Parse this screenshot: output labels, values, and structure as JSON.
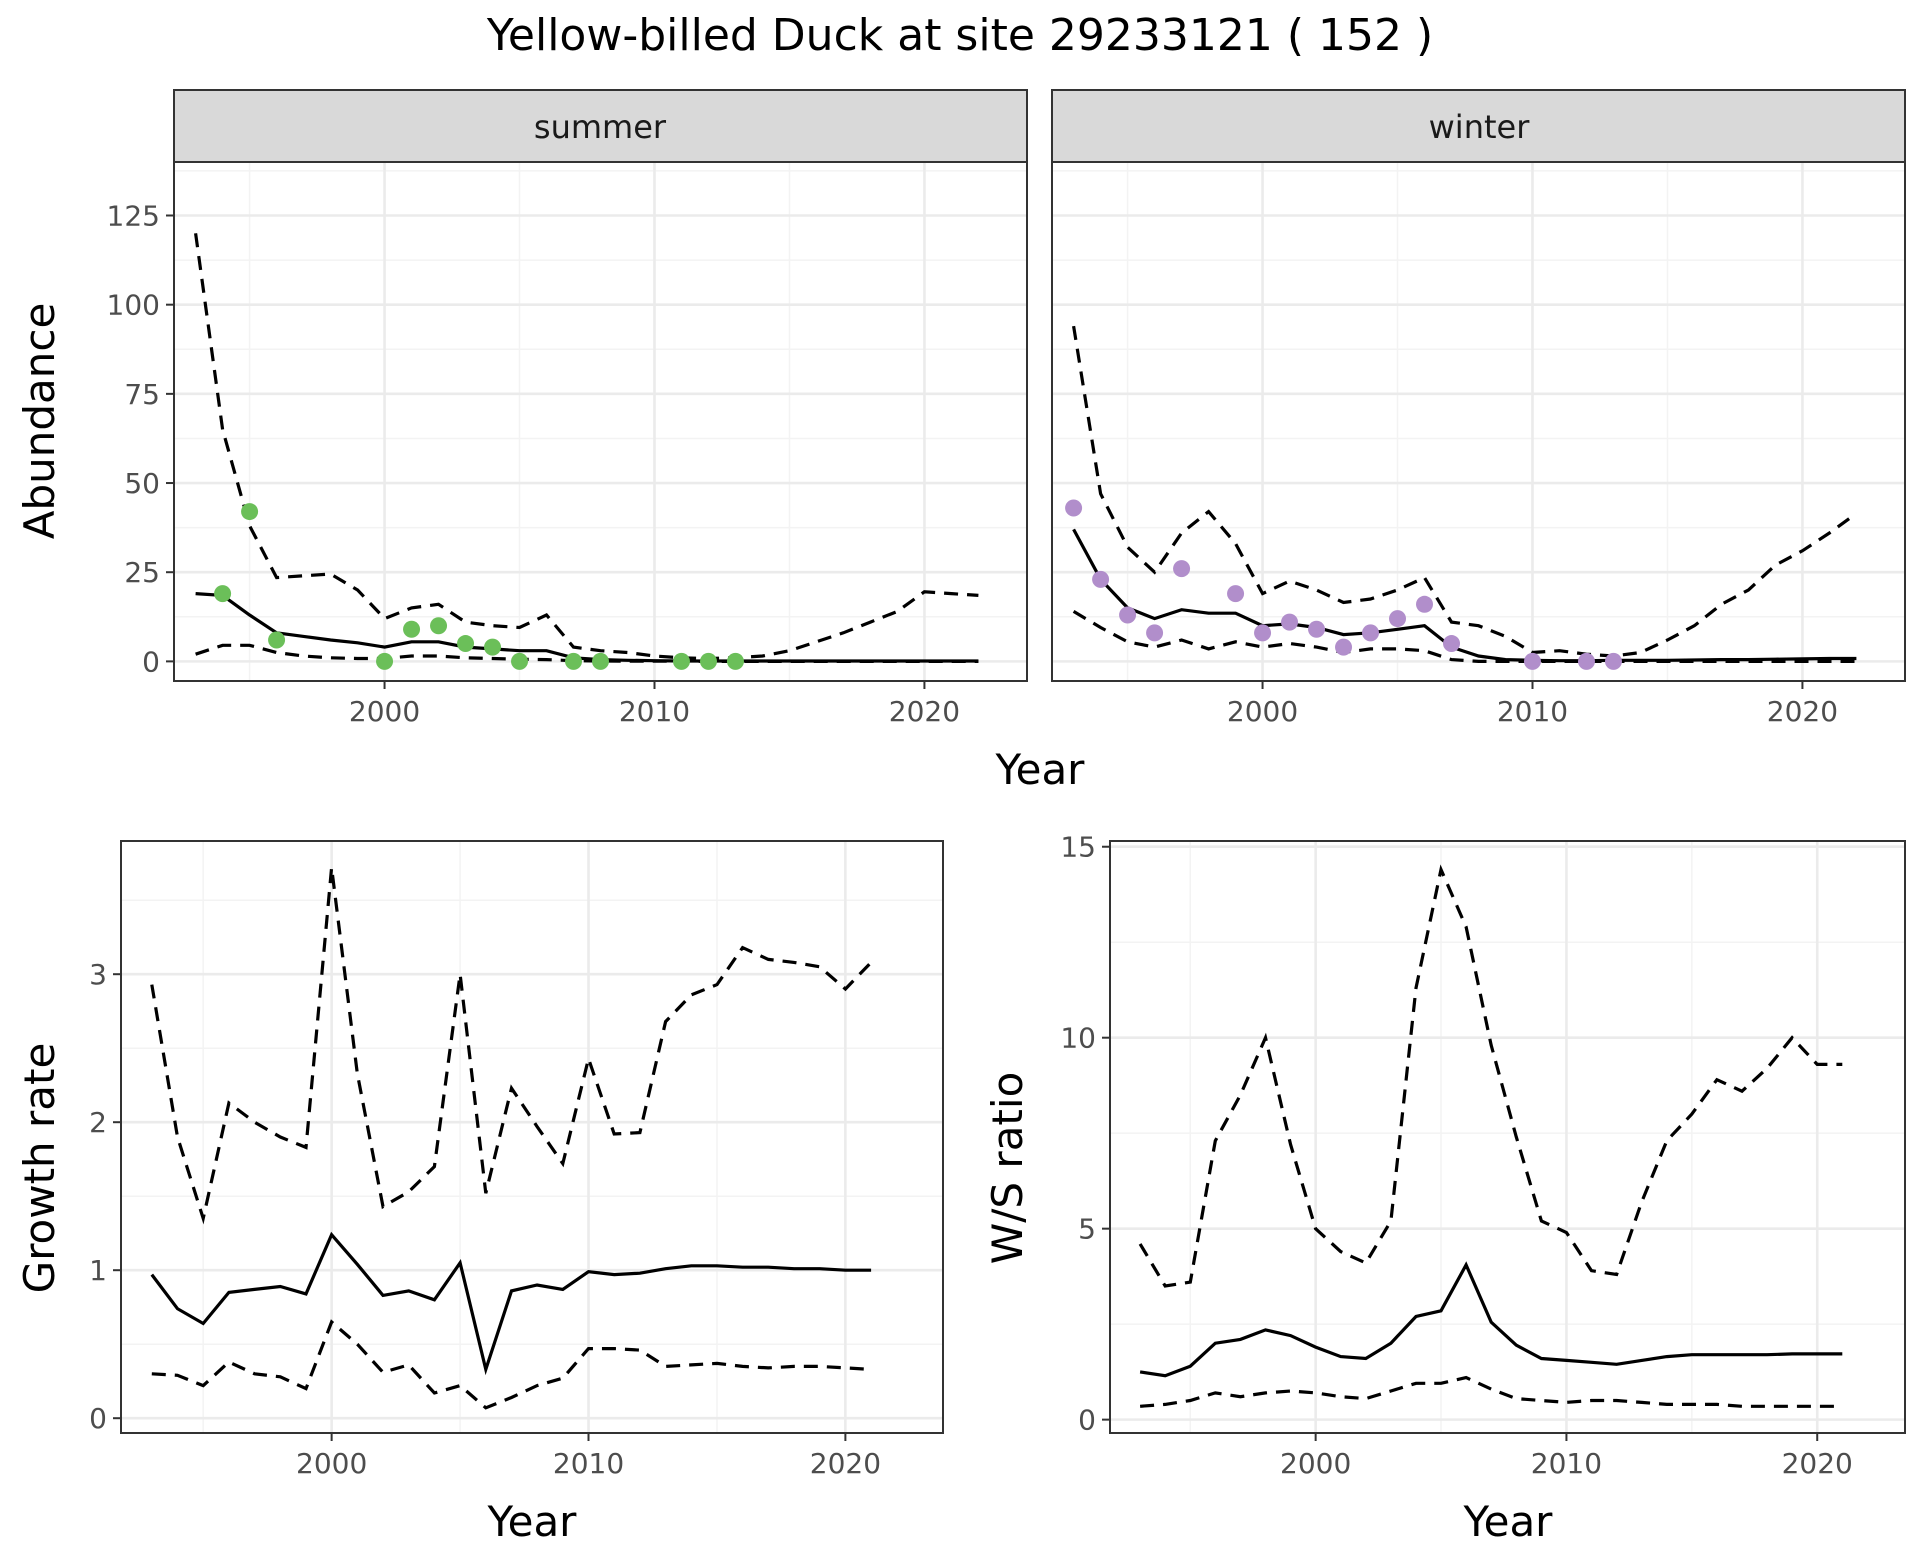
{
  "title": "Yellow-billed Duck at site 29233121 ( 152 )",
  "chart_data": [
    {
      "id": "abundance",
      "type": "line",
      "ylabel": "Abundance",
      "xlabel": "Year",
      "xlim": [
        1992.2,
        2023.8
      ],
      "ylim": [
        -5.5,
        140
      ],
      "xticks": [
        2000,
        2010,
        2020
      ],
      "yticks": [
        0,
        25,
        50,
        75,
        100,
        125
      ],
      "grid": true,
      "facets": [
        {
          "strip": "summer",
          "point_color": "#6bbf59",
          "years": [
            1993,
            1994,
            1995,
            1996,
            1997,
            1998,
            1999,
            2000,
            2001,
            2002,
            2003,
            2004,
            2005,
            2006,
            2007,
            2008,
            2009,
            2010,
            2011,
            2012,
            2013,
            2014,
            2015,
            2016,
            2017,
            2018,
            2019,
            2020,
            2021,
            2022
          ],
          "mean": [
            19,
            18.5,
            13,
            8,
            7,
            6,
            5.2,
            4,
            5.5,
            5.5,
            4,
            3.5,
            3,
            3,
            1,
            0.5,
            0.3,
            0.2,
            0.1,
            0.1,
            0.1,
            0.1,
            0.1,
            0.1,
            0.1,
            0.1,
            0.1,
            0.1,
            0.1,
            0.1
          ],
          "upper": [
            120,
            65,
            38,
            23.5,
            24,
            24.5,
            20,
            12,
            15,
            16,
            11,
            10,
            9.5,
            13,
            4,
            3,
            2.5,
            1.5,
            1,
            0.8,
            1,
            1.5,
            3,
            5.5,
            8,
            11,
            14,
            19.5,
            19,
            18.5
          ],
          "lower": [
            2,
            4.5,
            4.5,
            2.5,
            1.5,
            1,
            0.8,
            0.8,
            1.5,
            1.5,
            1,
            0.8,
            0.6,
            0.5,
            0.2,
            0.1,
            0.05,
            0.05,
            0.05,
            0,
            0,
            0,
            0,
            0,
            0,
            0,
            0,
            0,
            0,
            0
          ],
          "obs_years": [
            1994,
            1995,
            1996,
            2000,
            2001,
            2002,
            2003,
            2004,
            2005,
            2007,
            2008,
            2011,
            2012,
            2013
          ],
          "obs_values": [
            19,
            42,
            6,
            0,
            9,
            10,
            5,
            4,
            0,
            0,
            0,
            0,
            0,
            0
          ]
        },
        {
          "strip": "winter",
          "point_color": "#b18ecb",
          "years": [
            1993,
            1994,
            1995,
            1996,
            1997,
            1998,
            1999,
            2000,
            2001,
            2002,
            2003,
            2004,
            2005,
            2006,
            2007,
            2008,
            2009,
            2010,
            2011,
            2012,
            2013,
            2014,
            2015,
            2016,
            2017,
            2018,
            2019,
            2020,
            2021,
            2022
          ],
          "mean": [
            37,
            23,
            15,
            12,
            14.5,
            13.5,
            13.5,
            10,
            10.5,
            9.5,
            7.5,
            8,
            9,
            10,
            4,
            1.5,
            0.5,
            0.3,
            0.2,
            0.2,
            0.3,
            0.3,
            0.3,
            0.4,
            0.5,
            0.5,
            0.6,
            0.7,
            0.8,
            0.8
          ],
          "upper": [
            94,
            47,
            32,
            25,
            36,
            42,
            33,
            19,
            22.5,
            20,
            16.5,
            17.5,
            20,
            23.5,
            11,
            10,
            7,
            2.5,
            3,
            2,
            1.5,
            2.5,
            6,
            10,
            16,
            20,
            27,
            31,
            36,
            41.5
          ],
          "lower": [
            14,
            9.5,
            5.5,
            4,
            6,
            3.5,
            5.5,
            4,
            5,
            4,
            2.5,
            3.5,
            3.5,
            3,
            0.5,
            0,
            0,
            0,
            0,
            0,
            0,
            0,
            0,
            0,
            0,
            0,
            0,
            0,
            0,
            0
          ],
          "obs_years": [
            1993,
            1994,
            1995,
            1996,
            1997,
            1999,
            2000,
            2001,
            2002,
            2003,
            2004,
            2005,
            2006,
            2007,
            2010,
            2012,
            2013
          ],
          "obs_values": [
            43,
            23,
            13,
            8,
            26,
            19,
            8,
            11,
            9,
            4,
            8,
            12,
            16,
            5,
            0,
            0,
            0
          ]
        }
      ]
    },
    {
      "id": "growth",
      "type": "line",
      "ylabel": "Growth rate",
      "xlabel": "Year",
      "xlim": [
        1991.8,
        2023.8
      ],
      "ylim": [
        -0.1,
        3.9
      ],
      "xticks": [
        2000,
        2010,
        2020
      ],
      "yticks": [
        0,
        1,
        2,
        3
      ],
      "grid": true,
      "years": [
        1993,
        1994,
        1995,
        1996,
        1997,
        1998,
        1999,
        2000,
        2001,
        2002,
        2003,
        2004,
        2005,
        2006,
        2007,
        2008,
        2009,
        2010,
        2011,
        2012,
        2013,
        2014,
        2015,
        2016,
        2017,
        2018,
        2019,
        2020,
        2021
      ],
      "mean": [
        0.97,
        0.74,
        0.64,
        0.85,
        0.87,
        0.89,
        0.84,
        1.24,
        1.04,
        0.83,
        0.86,
        0.8,
        1.05,
        0.33,
        0.86,
        0.9,
        0.87,
        0.99,
        0.97,
        0.98,
        1.01,
        1.03,
        1.03,
        1.02,
        1.02,
        1.01,
        1.01,
        1.0,
        1.0
      ],
      "upper": [
        2.93,
        1.9,
        1.35,
        2.13,
        2.0,
        1.9,
        1.83,
        3.72,
        2.33,
        1.43,
        1.53,
        1.7,
        3.0,
        1.52,
        2.23,
        1.97,
        1.72,
        2.43,
        1.92,
        1.93,
        2.68,
        2.86,
        2.93,
        3.18,
        3.1,
        3.08,
        3.05,
        2.9,
        3.08
      ],
      "lower": [
        0.3,
        0.29,
        0.22,
        0.38,
        0.3,
        0.28,
        0.2,
        0.65,
        0.5,
        0.31,
        0.36,
        0.17,
        0.22,
        0.07,
        0.14,
        0.22,
        0.27,
        0.47,
        0.47,
        0.46,
        0.35,
        0.36,
        0.37,
        0.35,
        0.34,
        0.35,
        0.35,
        0.34,
        0.33
      ]
    },
    {
      "id": "ws",
      "type": "line",
      "ylabel": "W/S ratio",
      "xlabel": "Year",
      "xlim": [
        1991.8,
        2023.5
      ],
      "ylim": [
        -0.35,
        15.15
      ],
      "xticks": [
        2000,
        2010,
        2020
      ],
      "yticks": [
        0,
        5,
        10,
        15
      ],
      "grid": true,
      "years": [
        1993,
        1994,
        1995,
        1996,
        1997,
        1998,
        1999,
        2000,
        2001,
        2002,
        2003,
        2004,
        2005,
        2006,
        2007,
        2008,
        2009,
        2010,
        2011,
        2012,
        2013,
        2014,
        2015,
        2016,
        2017,
        2018,
        2019,
        2020,
        2021
      ],
      "mean": [
        1.25,
        1.15,
        1.4,
        2.0,
        2.1,
        2.35,
        2.2,
        1.9,
        1.65,
        1.6,
        2.0,
        2.7,
        2.85,
        4.05,
        2.55,
        1.95,
        1.6,
        1.55,
        1.5,
        1.45,
        1.55,
        1.65,
        1.7,
        1.7,
        1.7,
        1.7,
        1.72,
        1.72,
        1.72
      ],
      "upper": [
        4.6,
        3.5,
        3.6,
        7.3,
        8.5,
        10.0,
        7.2,
        5.0,
        4.4,
        4.1,
        5.2,
        11.3,
        14.4,
        12.9,
        9.8,
        7.4,
        5.2,
        4.9,
        3.9,
        3.8,
        5.7,
        7.3,
        8.0,
        8.9,
        8.6,
        9.2,
        10.0,
        9.3,
        9.3
      ],
      "lower": [
        0.35,
        0.4,
        0.5,
        0.7,
        0.6,
        0.7,
        0.75,
        0.7,
        0.6,
        0.55,
        0.75,
        0.95,
        0.95,
        1.1,
        0.8,
        0.55,
        0.5,
        0.45,
        0.5,
        0.5,
        0.45,
        0.4,
        0.4,
        0.4,
        0.35,
        0.35,
        0.35,
        0.35,
        0.35
      ]
    }
  ]
}
